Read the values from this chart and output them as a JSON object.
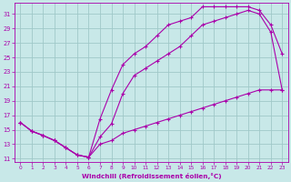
{
  "xlabel": "Windchill (Refroidissement éolien,°C)",
  "bg_color": "#c8e8e8",
  "grid_color": "#a0c8c8",
  "line_color": "#aa00aa",
  "xlim": [
    -0.5,
    23.5
  ],
  "ylim": [
    10.5,
    32.5
  ],
  "xticks": [
    0,
    1,
    2,
    3,
    4,
    5,
    6,
    7,
    8,
    9,
    10,
    11,
    12,
    13,
    14,
    15,
    16,
    17,
    18,
    19,
    20,
    21,
    22,
    23
  ],
  "yticks": [
    11,
    13,
    15,
    17,
    19,
    21,
    23,
    25,
    27,
    29,
    31
  ],
  "line1_x": [
    0,
    1,
    2,
    3,
    4,
    5,
    6,
    7,
    8,
    9,
    10,
    11,
    12,
    13,
    14,
    15,
    16,
    17,
    18,
    19,
    20,
    21,
    22,
    23
  ],
  "line1_y": [
    16.0,
    14.8,
    14.2,
    13.5,
    12.5,
    11.5,
    11.2,
    16.5,
    20.5,
    24.0,
    25.5,
    26.5,
    28.0,
    29.5,
    30.0,
    30.5,
    32.0,
    32.0,
    32.0,
    32.0,
    32.0,
    31.5,
    29.5,
    25.5
  ],
  "line2_x": [
    0,
    1,
    2,
    3,
    4,
    5,
    6,
    7,
    8,
    9,
    10,
    11,
    12,
    13,
    14,
    15,
    16,
    17,
    18,
    19,
    20,
    21,
    22,
    23
  ],
  "line2_y": [
    16.0,
    14.8,
    14.2,
    13.5,
    12.5,
    11.5,
    11.2,
    14.0,
    15.8,
    20.0,
    22.5,
    23.5,
    24.5,
    25.5,
    26.5,
    28.0,
    29.5,
    30.0,
    30.5,
    31.0,
    31.5,
    31.0,
    28.5,
    20.5
  ],
  "line3_x": [
    0,
    1,
    2,
    3,
    4,
    5,
    6,
    7,
    8,
    9,
    10,
    11,
    12,
    13,
    14,
    15,
    16,
    17,
    18,
    19,
    20,
    21,
    22,
    23
  ],
  "line3_y": [
    16.0,
    14.8,
    14.2,
    13.5,
    12.5,
    11.5,
    11.2,
    13.0,
    13.5,
    14.5,
    15.0,
    15.5,
    16.0,
    16.5,
    17.0,
    17.5,
    18.0,
    18.5,
    19.0,
    19.5,
    20.0,
    20.5,
    20.5,
    20.5
  ]
}
